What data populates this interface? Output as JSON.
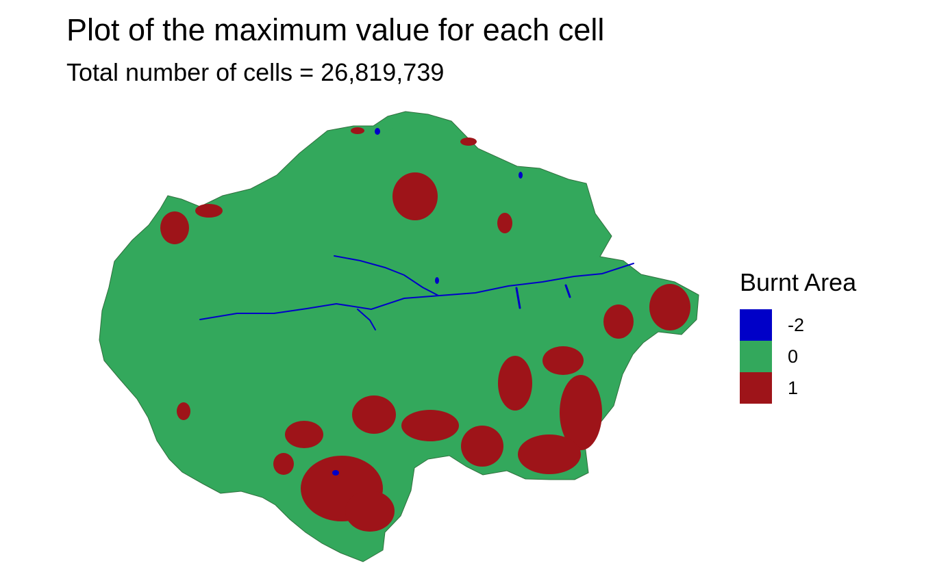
{
  "title": "Plot of the maximum value for each cell",
  "subtitle": "Total number of cells = 26,819,739",
  "legend": {
    "title": "Burnt Area",
    "items": [
      {
        "label": "-2",
        "color": "#0000c8"
      },
      {
        "label": "0",
        "color": "#33a85c"
      },
      {
        "label": "1",
        "color": "#9e1419"
      }
    ]
  },
  "map": {
    "type": "raster",
    "value_colors": {
      "-2": "#0000c8",
      "0": "#33a85c",
      "1": "#9e1419"
    },
    "background_class": "0",
    "region_outline_color": "#2f6f3d"
  }
}
